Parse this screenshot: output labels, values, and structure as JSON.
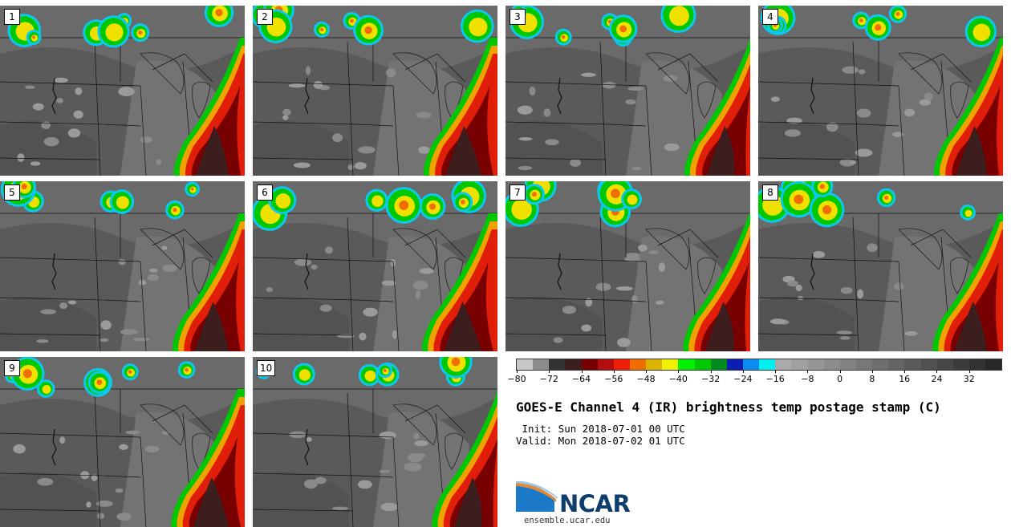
{
  "title": "GOES-E Channel 4 (IR) brightness temp postage stamp (C)",
  "init": " Init: Sun 2018-07-01 00 UTC",
  "valid": "Valid: Mon 2018-07-02 01 UTC",
  "logo": {
    "text": "NCAR",
    "url": "ensemble.ucar.edu",
    "icon": "ncar-logo-icon"
  },
  "members": [
    "1",
    "2",
    "3",
    "4",
    "5",
    "6",
    "7",
    "8",
    "9",
    "10"
  ],
  "colorbar": {
    "colors": [
      "#c8c8c8",
      "#8c8c8c",
      "#323232",
      "#3c1e1e",
      "#780000",
      "#b40f0f",
      "#f01e0a",
      "#f06e00",
      "#dcb400",
      "#f0f000",
      "#00f000",
      "#00c800",
      "#008c1e",
      "#0a1eb4",
      "#0a8cf0",
      "#00f0f0",
      "#aaaaaa",
      "#a0a0a0",
      "#969696",
      "#8c8c8c",
      "#828282",
      "#787878",
      "#6e6e6e",
      "#646464",
      "#5a5a5a",
      "#505050",
      "#464646",
      "#3c3c3c",
      "#323232",
      "#282828"
    ],
    "tick_labels": [
      "-80",
      "-72",
      "-64",
      "-56",
      "-48",
      "-40",
      "-32",
      "-24",
      "-16",
      "-8",
      "0",
      "8",
      "16",
      "24",
      "32"
    ],
    "range": [
      -80,
      40
    ]
  }
}
